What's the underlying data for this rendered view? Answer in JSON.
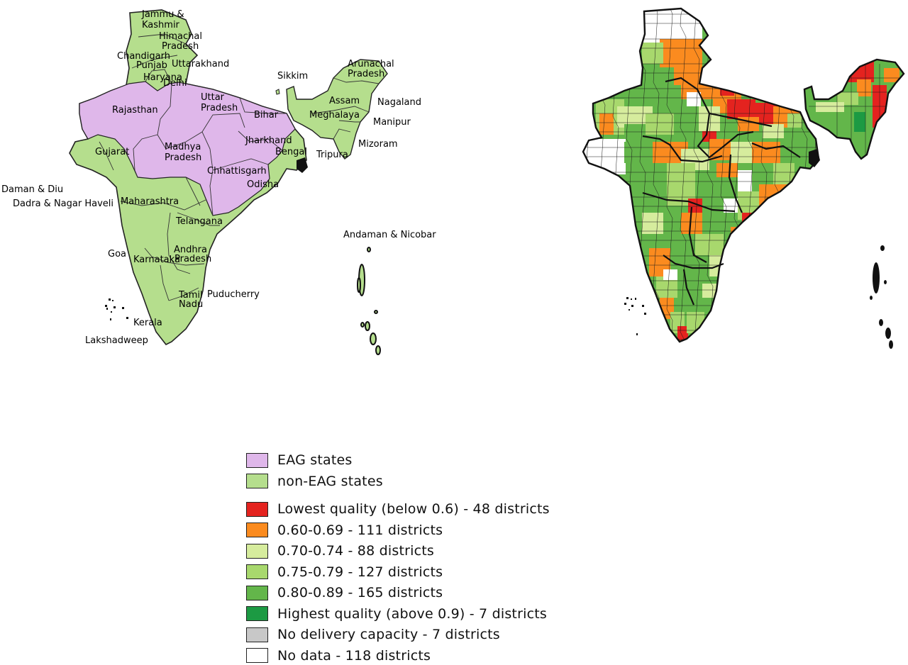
{
  "colors": {
    "eag": "#dfb7ea",
    "non_eag": "#b5de8d",
    "lowest": "#e4231f",
    "q60_69": "#fb8b1f",
    "q70_74": "#d6ec9d",
    "q75_79": "#a8d86d",
    "q80_89": "#63b64a",
    "highest": "#1c9a43",
    "no_capacity": "#c8c8c8",
    "no_data": "#ffffff"
  },
  "left_map": {
    "labels": [
      {
        "id": "jammu-kashmir-1",
        "text": "Jammu &"
      },
      {
        "id": "jammu-kashmir-2",
        "text": "Kashmir"
      },
      {
        "id": "himachal-1",
        "text": "Himachal"
      },
      {
        "id": "himachal-2",
        "text": "Pradesh"
      },
      {
        "id": "chandigarh",
        "text": "Chandigarh"
      },
      {
        "id": "punjab",
        "text": "Punjab"
      },
      {
        "id": "uttarakhand",
        "text": "Uttarakhand"
      },
      {
        "id": "haryana",
        "text": "Haryana"
      },
      {
        "id": "delhi",
        "text": "Delhi"
      },
      {
        "id": "rajasthan",
        "text": "Rajasthan"
      },
      {
        "id": "uttar-1",
        "text": "Uttar"
      },
      {
        "id": "uttar-2",
        "text": "Pradesh"
      },
      {
        "id": "bihar",
        "text": "Bihar"
      },
      {
        "id": "sikkim",
        "text": "Sikkim"
      },
      {
        "id": "arunachal-1",
        "text": "Arunachal"
      },
      {
        "id": "arunachal-2",
        "text": "Pradesh"
      },
      {
        "id": "nagaland",
        "text": "Nagaland"
      },
      {
        "id": "assam",
        "text": "Assam"
      },
      {
        "id": "meghalaya",
        "text": "Meghalaya"
      },
      {
        "id": "manipur",
        "text": "Manipur"
      },
      {
        "id": "jharkhand",
        "text": "Jharkhand"
      },
      {
        "id": "west-bengal",
        "text": "Bengal"
      },
      {
        "id": "mizoram",
        "text": "Mizoram"
      },
      {
        "id": "tripura",
        "text": "Tripura"
      },
      {
        "id": "gujarat",
        "text": "Gujarat"
      },
      {
        "id": "madhya-1",
        "text": "Madhya"
      },
      {
        "id": "madhya-2",
        "text": "Pradesh"
      },
      {
        "id": "chhattisgarh",
        "text": "Chhattisgarh"
      },
      {
        "id": "odisha",
        "text": "Odisha"
      },
      {
        "id": "daman-diu",
        "text": "Daman & Diu"
      },
      {
        "id": "dadra",
        "text": "Dadra & Nagar Haveli"
      },
      {
        "id": "maharashtra",
        "text": "Maharashtra"
      },
      {
        "id": "telangana",
        "text": "Telangana"
      },
      {
        "id": "andaman",
        "text": "Andaman & Nicobar"
      },
      {
        "id": "goa",
        "text": "Goa"
      },
      {
        "id": "andhra-1",
        "text": "Andhra"
      },
      {
        "id": "karnataka",
        "text": "Karnataka"
      },
      {
        "id": "andhra-2",
        "text": "Pradesh"
      },
      {
        "id": "tamil-1",
        "text": "Tamil"
      },
      {
        "id": "tamil-2",
        "text": "Nadu"
      },
      {
        "id": "puducherry",
        "text": "Puducherry"
      },
      {
        "id": "kerala",
        "text": "Kerala"
      },
      {
        "id": "lakshadweep",
        "text": "Lakshadweep"
      }
    ]
  },
  "legend": {
    "group1": [
      {
        "label": "EAG states",
        "color_key": "eag"
      },
      {
        "label": "non-EAG states",
        "color_key": "non_eag"
      }
    ],
    "group2": [
      {
        "label": "Lowest quality (below 0.6) - 48 districts",
        "color_key": "lowest"
      },
      {
        "label": "0.60-0.69 - 111 districts",
        "color_key": "q60_69"
      },
      {
        "label": "0.70-0.74 - 88 districts",
        "color_key": "q70_74"
      },
      {
        "label": "0.75-0.79 - 127 districts",
        "color_key": "q75_79"
      },
      {
        "label": "0.80-0.89 - 165 districts",
        "color_key": "q80_89"
      },
      {
        "label": "Highest quality (above 0.9) - 7 districts",
        "color_key": "highest"
      },
      {
        "label": "No delivery capacity - 7 districts",
        "color_key": "no_capacity"
      },
      {
        "label": "No data - 118 districts",
        "color_key": "no_data"
      }
    ]
  }
}
